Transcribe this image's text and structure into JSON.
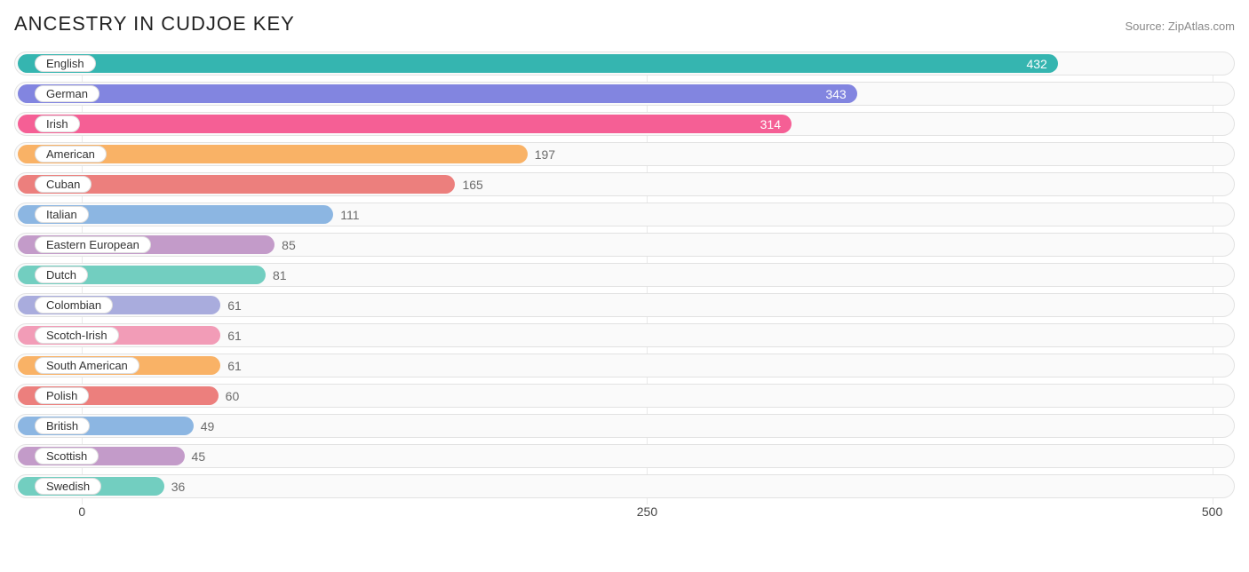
{
  "header": {
    "title": "ANCESTRY IN CUDJOE KEY",
    "source": "Source: ZipAtlas.com"
  },
  "chart": {
    "type": "bar",
    "x_min": -30,
    "x_max": 510,
    "ticks": [
      0,
      250,
      500
    ],
    "track_border": "#e2e2e2",
    "track_bg": "#fafafa",
    "bar_radius": 12,
    "label_fontsize": 13,
    "value_fontsize": 14,
    "title_fontsize": 22,
    "colors": {
      "teal": "#35b5b0",
      "indigo": "#8285e0",
      "pink": "#f55f95",
      "orange": "#f9b266",
      "coral": "#ec7f7d",
      "blue": "#8cb6e2",
      "mauve": "#c39bc9",
      "mint": "#72cec0",
      "lav": "#a9acdd",
      "rose": "#f29cb7"
    },
    "rows": [
      {
        "label": "English",
        "value": 432,
        "colorKey": "teal",
        "value_inside": true
      },
      {
        "label": "German",
        "value": 343,
        "colorKey": "indigo",
        "value_inside": true
      },
      {
        "label": "Irish",
        "value": 314,
        "colorKey": "pink",
        "value_inside": true
      },
      {
        "label": "American",
        "value": 197,
        "colorKey": "orange",
        "value_inside": false
      },
      {
        "label": "Cuban",
        "value": 165,
        "colorKey": "coral",
        "value_inside": false
      },
      {
        "label": "Italian",
        "value": 111,
        "colorKey": "blue",
        "value_inside": false
      },
      {
        "label": "Eastern European",
        "value": 85,
        "colorKey": "mauve",
        "value_inside": false
      },
      {
        "label": "Dutch",
        "value": 81,
        "colorKey": "mint",
        "value_inside": false
      },
      {
        "label": "Colombian",
        "value": 61,
        "colorKey": "lav",
        "value_inside": false
      },
      {
        "label": "Scotch-Irish",
        "value": 61,
        "colorKey": "rose",
        "value_inside": false
      },
      {
        "label": "South American",
        "value": 61,
        "colorKey": "orange",
        "value_inside": false
      },
      {
        "label": "Polish",
        "value": 60,
        "colorKey": "coral",
        "value_inside": false
      },
      {
        "label": "British",
        "value": 49,
        "colorKey": "blue",
        "value_inside": false
      },
      {
        "label": "Scottish",
        "value": 45,
        "colorKey": "mauve",
        "value_inside": false
      },
      {
        "label": "Swedish",
        "value": 36,
        "colorKey": "mint",
        "value_inside": false
      }
    ]
  }
}
